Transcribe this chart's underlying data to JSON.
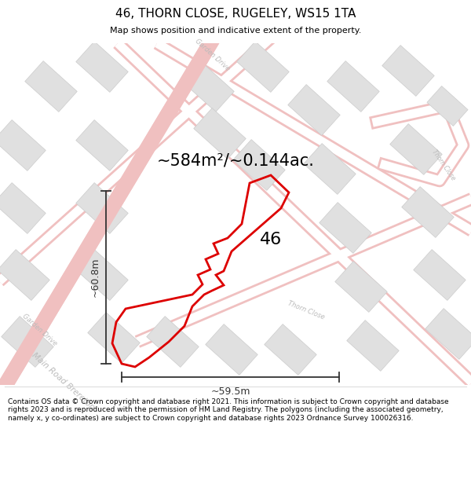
{
  "title": "46, THORN CLOSE, RUGELEY, WS15 1TA",
  "subtitle": "Map shows position and indicative extent of the property.",
  "area_text": "~584m²/~0.144ac.",
  "label_46": "46",
  "dim_width": "~59.5m",
  "dim_height": "~60.8m",
  "footer": "Contains OS data © Crown copyright and database right 2021. This information is subject to Crown copyright and database rights 2023 and is reproduced with the permission of HM Land Registry. The polygons (including the associated geometry, namely x, y co-ordinates) are subject to Crown copyright and database rights 2023 Ordnance Survey 100026316.",
  "bg_color": "#ffffff",
  "map_bg": "#f7f7f7",
  "road_color": "#f0c0c0",
  "road_outline_color": "#e8b0b0",
  "building_fill": "#e0e0e0",
  "building_edge": "#cccccc",
  "plot_outline_color": "#dd0000",
  "street_label_color": "#bbbbbb",
  "dim_line_color": "#333333",
  "figsize": [
    6.0,
    6.25
  ],
  "dpi": 100,
  "title_fontsize": 11,
  "subtitle_fontsize": 8,
  "area_fontsize": 15,
  "label_fontsize": 16,
  "dim_fontsize": 9,
  "footer_fontsize": 6.5
}
